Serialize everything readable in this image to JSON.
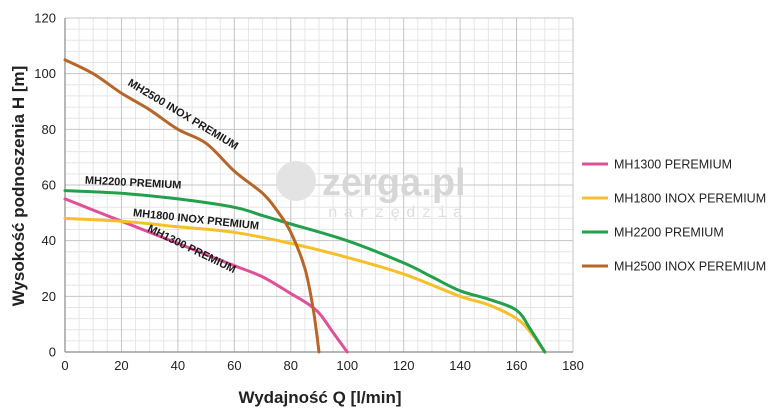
{
  "chart_data": {
    "type": "line",
    "xlabel": "Wydajność Q [l/min]",
    "ylabel": "Wysokość podnoszenia H [m]",
    "xlim": [
      0,
      180
    ],
    "ylim": [
      0,
      120
    ],
    "x_ticks": [
      "0",
      "20",
      "40",
      "60",
      "80",
      "100",
      "120",
      "140",
      "160",
      "180"
    ],
    "y_ticks": [
      "0",
      "20",
      "40",
      "60",
      "80",
      "100",
      "120"
    ],
    "grid": true,
    "legend_position": "right",
    "series": [
      {
        "name": "MH1300 PEREMIUM",
        "color": "#e0509a",
        "curve_label": "MH1300 PREMIUM",
        "points": [
          [
            0,
            55
          ],
          [
            10,
            51
          ],
          [
            20,
            47
          ],
          [
            30,
            43
          ],
          [
            40,
            39
          ],
          [
            50,
            35
          ],
          [
            60,
            31
          ],
          [
            70,
            27
          ],
          [
            80,
            21
          ],
          [
            85,
            18
          ],
          [
            90,
            14
          ],
          [
            95,
            7
          ],
          [
            100,
            0
          ]
        ]
      },
      {
        "name": "MH1800 INOX PEREMIUM",
        "color": "#f5c02a",
        "curve_label": "MH1800 INOX PREMIUM",
        "points": [
          [
            0,
            48
          ],
          [
            20,
            47
          ],
          [
            40,
            45
          ],
          [
            60,
            43
          ],
          [
            80,
            39
          ],
          [
            100,
            34
          ],
          [
            120,
            28
          ],
          [
            140,
            20
          ],
          [
            150,
            17
          ],
          [
            160,
            12
          ],
          [
            165,
            7
          ],
          [
            170,
            0
          ]
        ]
      },
      {
        "name": "MH2200 PREMIUM",
        "color": "#23a04c",
        "curve_label": "MH2200 PREMIUM",
        "points": [
          [
            0,
            58
          ],
          [
            20,
            57
          ],
          [
            40,
            55
          ],
          [
            60,
            52
          ],
          [
            70,
            49
          ],
          [
            80,
            46
          ],
          [
            100,
            40
          ],
          [
            120,
            32
          ],
          [
            130,
            27
          ],
          [
            140,
            22
          ],
          [
            150,
            19
          ],
          [
            160,
            15
          ],
          [
            165,
            8
          ],
          [
            170,
            0
          ]
        ]
      },
      {
        "name": "MH2500 INOX PEREMIUM",
        "color": "#b8652a",
        "curve_label": "MH2500 INOX PREMIUM",
        "points": [
          [
            0,
            105
          ],
          [
            10,
            100
          ],
          [
            20,
            93
          ],
          [
            30,
            87
          ],
          [
            40,
            80
          ],
          [
            50,
            75
          ],
          [
            60,
            65
          ],
          [
            70,
            57
          ],
          [
            75,
            51
          ],
          [
            80,
            43
          ],
          [
            85,
            30
          ],
          [
            88,
            15
          ],
          [
            90,
            0
          ]
        ]
      }
    ]
  },
  "watermark": {
    "title": "zerga.pl",
    "subtitle": "narzędzia"
  }
}
